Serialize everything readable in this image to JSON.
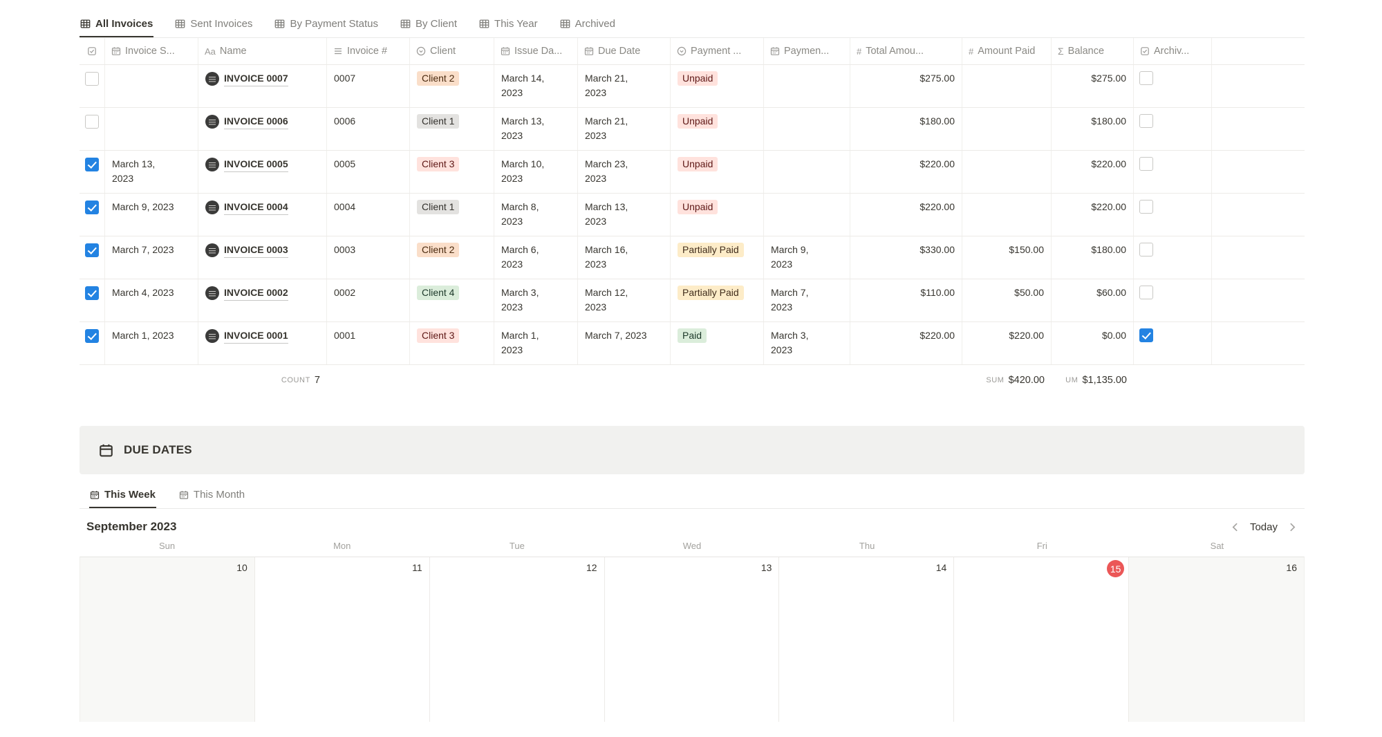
{
  "view_tabs": [
    {
      "label": "All Invoices",
      "active": true
    },
    {
      "label": "Sent Invoices",
      "active": false
    },
    {
      "label": "By Payment Status",
      "active": false
    },
    {
      "label": "By Client",
      "active": false
    },
    {
      "label": "This Year",
      "active": false
    },
    {
      "label": "Archived",
      "active": false
    }
  ],
  "table": {
    "columns": [
      {
        "icon": "checkbox",
        "label": ""
      },
      {
        "icon": "calendar",
        "label": "Invoice S..."
      },
      {
        "icon": "text",
        "label": "Name"
      },
      {
        "icon": "lines",
        "label": "Invoice #"
      },
      {
        "icon": "select",
        "label": "Client"
      },
      {
        "icon": "calendar",
        "label": "Issue Da..."
      },
      {
        "icon": "calendar",
        "label": "Due Date"
      },
      {
        "icon": "select",
        "label": "Payment ..."
      },
      {
        "icon": "calendar",
        "label": "Paymen..."
      },
      {
        "icon": "hash",
        "label": "Total Amou..."
      },
      {
        "icon": "hash",
        "label": "Amount Paid"
      },
      {
        "icon": "sigma",
        "label": "Balance"
      },
      {
        "icon": "checkbox",
        "label": "Archiv..."
      }
    ],
    "rows": [
      {
        "selected": false,
        "invoice_sent": "",
        "name": "INVOICE 0007",
        "number": "0007",
        "client": {
          "label": "Client 2",
          "color": "orange"
        },
        "issue_date": "March 14, 2023",
        "due_date": "March 21, 2023",
        "status": {
          "label": "Unpaid",
          "color": "red"
        },
        "payment_date": "",
        "total": "$275.00",
        "paid": "",
        "balance": "$275.00",
        "archived": false
      },
      {
        "selected": false,
        "invoice_sent": "",
        "name": "INVOICE 0006",
        "number": "0006",
        "client": {
          "label": "Client 1",
          "color": "gray"
        },
        "issue_date": "March 13, 2023",
        "due_date": "March 21, 2023",
        "status": {
          "label": "Unpaid",
          "color": "red"
        },
        "payment_date": "",
        "total": "$180.00",
        "paid": "",
        "balance": "$180.00",
        "archived": false
      },
      {
        "selected": true,
        "invoice_sent": "March 13, 2023",
        "name": "INVOICE 0005",
        "number": "0005",
        "client": {
          "label": "Client 3",
          "color": "red"
        },
        "issue_date": "March 10, 2023",
        "due_date": "March 23, 2023",
        "status": {
          "label": "Unpaid",
          "color": "red"
        },
        "payment_date": "",
        "total": "$220.00",
        "paid": "",
        "balance": "$220.00",
        "archived": false
      },
      {
        "selected": true,
        "invoice_sent": "March 9, 2023",
        "name": "INVOICE 0004",
        "number": "0004",
        "client": {
          "label": "Client 1",
          "color": "gray"
        },
        "issue_date": "March 8, 2023",
        "due_date": "March 13, 2023",
        "status": {
          "label": "Unpaid",
          "color": "red"
        },
        "payment_date": "",
        "total": "$220.00",
        "paid": "",
        "balance": "$220.00",
        "archived": false
      },
      {
        "selected": true,
        "invoice_sent": "March 7, 2023",
        "name": "INVOICE 0003",
        "number": "0003",
        "client": {
          "label": "Client 2",
          "color": "orange"
        },
        "issue_date": "March 6, 2023",
        "due_date": "March 16, 2023",
        "status": {
          "label": "Partially Paid",
          "color": "yellow"
        },
        "payment_date": "March 9, 2023",
        "total": "$330.00",
        "paid": "$150.00",
        "balance": "$180.00",
        "archived": false
      },
      {
        "selected": true,
        "invoice_sent": "March 4, 2023",
        "name": "INVOICE 0002",
        "number": "0002",
        "client": {
          "label": "Client 4",
          "color": "green"
        },
        "issue_date": "March 3, 2023",
        "due_date": "March 12, 2023",
        "status": {
          "label": "Partially Paid",
          "color": "yellow"
        },
        "payment_date": "March 7, 2023",
        "total": "$110.00",
        "paid": "$50.00",
        "balance": "$60.00",
        "archived": false
      },
      {
        "selected": true,
        "invoice_sent": "March 1, 2023",
        "name": "INVOICE 0001",
        "number": "0001",
        "client": {
          "label": "Client 3",
          "color": "red"
        },
        "issue_date": "March 1, 2023",
        "due_date": "March 7, 2023",
        "status": {
          "label": "Paid",
          "color": "green"
        },
        "payment_date": "March 3, 2023",
        "total": "$220.00",
        "paid": "$220.00",
        "balance": "$0.00",
        "archived": true
      }
    ],
    "footer": {
      "count_label": "COUNT",
      "count_value": "7",
      "sum_paid_label": "SUM",
      "sum_paid_value": "$420.00",
      "sum_balance_label": "UM",
      "sum_balance_value": "$1,135.00"
    }
  },
  "due_dates": {
    "title": "DUE DATES",
    "tabs": [
      {
        "label": "This Week",
        "active": true
      },
      {
        "label": "This Month",
        "active": false
      }
    ]
  },
  "calendar": {
    "month": "September 2023",
    "today_label": "Today",
    "weekdays": [
      "Sun",
      "Mon",
      "Tue",
      "Wed",
      "Thu",
      "Fri",
      "Sat"
    ],
    "days": [
      {
        "num": "10",
        "weekend": true,
        "today": false
      },
      {
        "num": "11",
        "weekend": false,
        "today": false
      },
      {
        "num": "12",
        "weekend": false,
        "today": false
      },
      {
        "num": "13",
        "weekend": false,
        "today": false
      },
      {
        "num": "14",
        "weekend": false,
        "today": false
      },
      {
        "num": "15",
        "weekend": false,
        "today": true
      },
      {
        "num": "16",
        "weekend": true,
        "today": false
      }
    ]
  },
  "colors": {
    "accent_blue": "#2383e2",
    "today_red": "#eb5757",
    "tag_orange_bg": "#fadec9",
    "tag_gray_bg": "#e3e2e0",
    "tag_red_bg": "#ffe2dd",
    "tag_green_bg": "#dbeddb",
    "tag_yellow_bg": "#fdecc8"
  }
}
